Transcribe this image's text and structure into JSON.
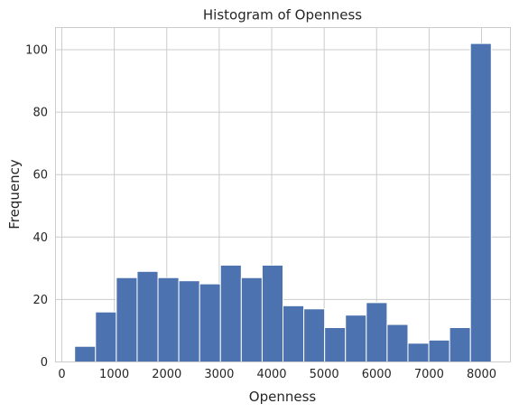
{
  "chart_data": {
    "type": "bar",
    "subtype": "histogram",
    "title": "Histogram of Openness",
    "xlabel": "Openness",
    "ylabel": "Frequency",
    "bin_edges": [
      245,
      642,
      1039,
      1436,
      1833,
      2230,
      2627,
      3024,
      3421,
      3818,
      4215,
      4612,
      5009,
      5406,
      5803,
      6200,
      6597,
      6994,
      7391,
      7788,
      8185
    ],
    "values": [
      5,
      16,
      27,
      29,
      27,
      26,
      25,
      31,
      27,
      31,
      18,
      17,
      11,
      15,
      19,
      12,
      6,
      7,
      11,
      102
    ],
    "xlim": [
      -120,
      8550
    ],
    "ylim": [
      0,
      107.1
    ],
    "xticks": [
      0,
      1000,
      2000,
      3000,
      4000,
      5000,
      6000,
      7000,
      8000
    ],
    "yticks": [
      0,
      20,
      40,
      60,
      80,
      100
    ],
    "grid": true,
    "bar_color": "#4c72b0"
  }
}
